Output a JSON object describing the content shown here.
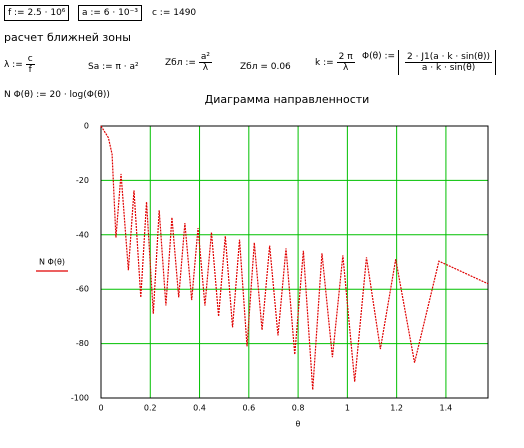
{
  "worksheet": {
    "f": "f := 2.5 · 10⁶",
    "a": "a := 6 · 10⁻³",
    "c": "c := 1490",
    "heading": "расчет ближней зоны",
    "lambda": {
      "lhs": "λ :=",
      "num": "c",
      "den": "f"
    },
    "sa": "Sa := π · a²",
    "zbl": {
      "lhs": "Zбл :=",
      "num": "a²",
      "den": "λ"
    },
    "zbl_value": "Zбл = 0.06",
    "k": {
      "lhs": "k :=",
      "num": "2 π",
      "den": "λ"
    },
    "phi": {
      "lhs": "Φ(θ) :=",
      "num": "2 · J1(a · k · sin(θ))",
      "den": "a · k · sin(θ)"
    },
    "nphi": "N Φ(θ) := 20 · log(Φ(θ))"
  },
  "chart_data": {
    "type": "line",
    "title": "Диаграмма направленности",
    "x_label": "θ",
    "x": [
      0,
      0.03,
      0.045,
      0.0606,
      0.0813,
      0.1111,
      0.1339,
      0.1615,
      0.1848,
      0.2122,
      0.2362,
      0.2634,
      0.2879,
      0.3154,
      0.3405,
      0.3681,
      0.3938,
      0.4219,
      0.4484,
      0.4773,
      0.5045,
      0.534,
      0.5623,
      0.5927,
      0.6222,
      0.6537,
      0.6846,
      0.7184,
      0.7509,
      0.7864,
      0.8214,
      0.8594,
      0.8969,
      0.9393,
      0.9817,
      1.0297,
      1.0775,
      1.1339,
      1.1962,
      1.2727,
      1.3716,
      1.5708
    ],
    "series": [
      {
        "name": "N Φ(θ)",
        "color": "#e00000",
        "values": [
          0,
          -4.3,
          -10.4,
          -41,
          -17.6,
          -53,
          -23.7,
          -63,
          -27.9,
          -69,
          -31,
          -66,
          -33.6,
          -63,
          -35.7,
          -64,
          -37.5,
          -66,
          -39.1,
          -70,
          -40.5,
          -74,
          -41.8,
          -81,
          -42.9,
          -75,
          -44,
          -77,
          -45,
          -84,
          -45.9,
          -97,
          -46.8,
          -85,
          -47.6,
          -94,
          -48.3,
          -82,
          -49,
          -87,
          -49.7,
          -58
        ]
      }
    ],
    "xlim": [
      0,
      1.5708
    ],
    "ylim": [
      -100,
      0
    ],
    "xticks": [
      0,
      0.2,
      0.4,
      0.6,
      0.8,
      1,
      1.2,
      1.4
    ],
    "yticks": [
      0,
      -20,
      -40,
      -60,
      -80,
      -100
    ],
    "grid": true,
    "grid_color": "#00c000"
  }
}
